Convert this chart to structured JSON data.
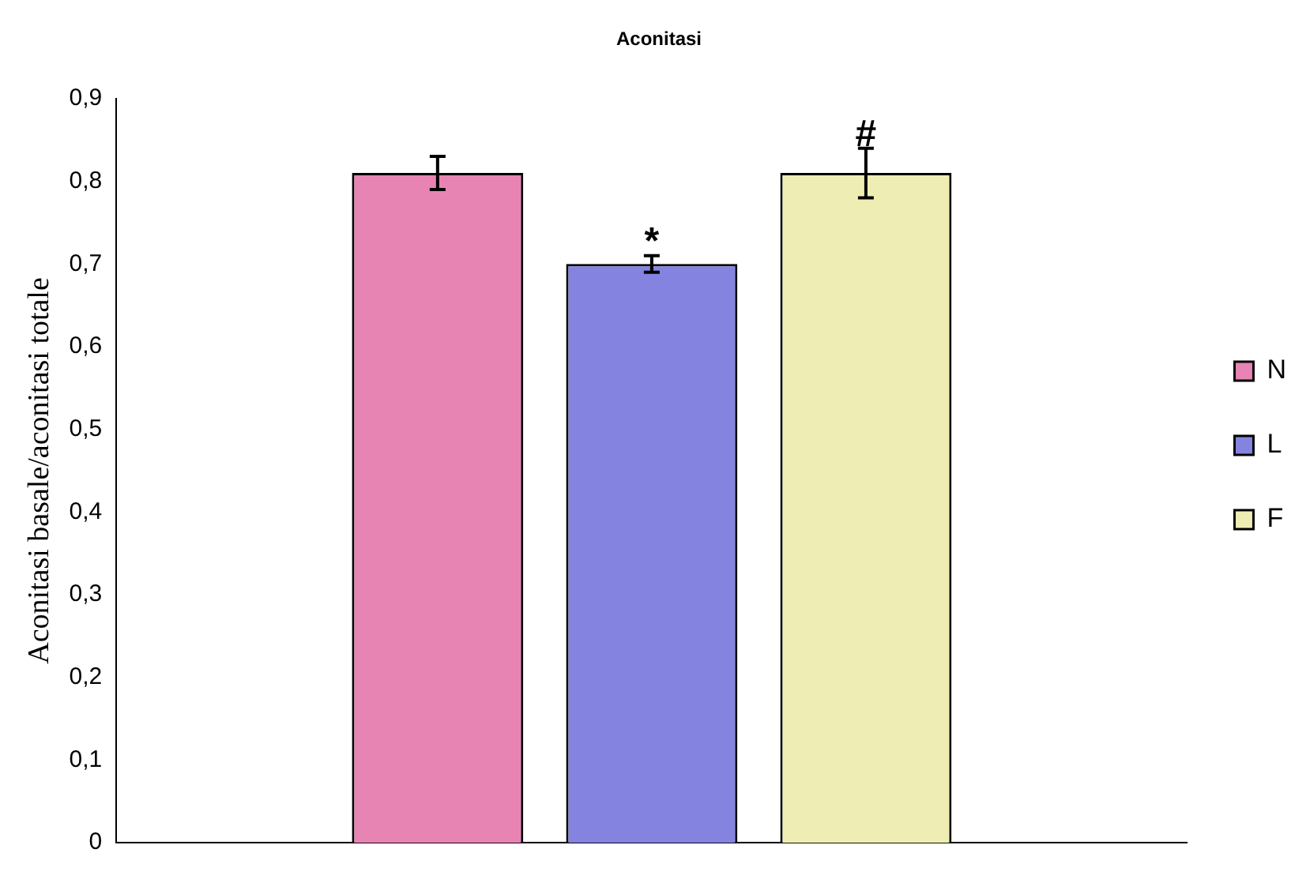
{
  "chart_data": {
    "type": "bar",
    "title": "Aconitasi",
    "ylabel": "Aconitasi basale/aconitasi totale",
    "categories": [
      null
    ],
    "series": [
      {
        "name": "N",
        "color": "#e884b4",
        "values": [
          0.81
        ],
        "errors": [
          0.02
        ],
        "value_labels": [
          null
        ]
      },
      {
        "name": "L",
        "color": "#8484e0",
        "values": [
          0.7
        ],
        "errors": [
          0.01
        ],
        "value_labels": [
          "*"
        ]
      },
      {
        "name": "F",
        "color": "#eeeeb4",
        "values": [
          0.81
        ],
        "errors": [
          0.03
        ],
        "value_labels": [
          "#"
        ]
      }
    ],
    "ylim": [
      0,
      0.9
    ],
    "yticks": [
      {
        "value": 0,
        "label": "0"
      },
      {
        "value": 0.1,
        "label": "0,1"
      },
      {
        "value": 0.2,
        "label": "0,2"
      },
      {
        "value": 0.3,
        "label": "0,3"
      },
      {
        "value": 0.4,
        "label": "0,4"
      },
      {
        "value": 0.5,
        "label": "0,5"
      },
      {
        "value": 0.6,
        "label": "0,6"
      },
      {
        "value": 0.7,
        "label": "0,7"
      },
      {
        "value": 0.8,
        "label": "0,8"
      },
      {
        "value": 0.9,
        "label": "0,9"
      }
    ],
    "grid": false,
    "legend": "right"
  }
}
